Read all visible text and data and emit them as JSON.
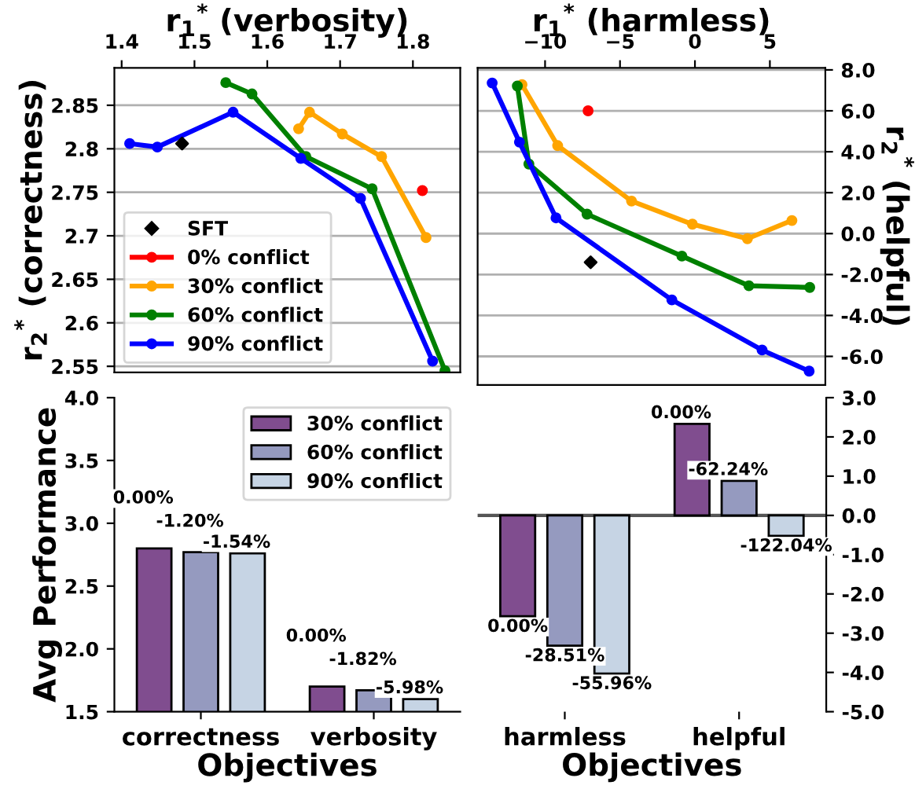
{
  "chart_data": [
    {
      "type": "line",
      "xlabel": "r$_{1}$$^{*}$ (verbosity)",
      "ylabel": "r$_{2}$$^{*}$ (correctness)",
      "xlim": [
        1.39,
        1.865
      ],
      "ylim": [
        2.543,
        2.893
      ],
      "xticks": [
        1.4,
        1.5,
        1.6,
        1.7,
        1.8
      ],
      "yticks": [
        2.55,
        2.6,
        2.65,
        2.7,
        2.75,
        2.8,
        2.85
      ],
      "grid": "y",
      "legend": "bottom left",
      "marker": "circle",
      "line_style": "solid",
      "series": [
        {
          "name": "SFT",
          "type": "scatter",
          "marker": "diamond",
          "color": "#000000",
          "x": [
            1.483
          ],
          "values": [
            2.806
          ]
        },
        {
          "name": "0% conflict",
          "color": "#ff0000",
          "x": [
            1.813
          ],
          "values": [
            2.752
          ]
        },
        {
          "name": "30% conflict",
          "color": "#ffa500",
          "x": [
            1.643,
            1.658,
            1.703,
            1.757,
            1.818
          ],
          "values": [
            2.823,
            2.842,
            2.817,
            2.791,
            2.698
          ]
        },
        {
          "name": "60% conflict",
          "color": "#008000",
          "x": [
            1.543,
            1.579,
            1.653,
            1.744,
            1.844
          ],
          "values": [
            2.876,
            2.863,
            2.791,
            2.754,
            2.545
          ]
        },
        {
          "name": "90% conflict",
          "color": "#0000ff",
          "x": [
            1.411,
            1.449,
            1.553,
            1.646,
            1.728,
            1.827
          ],
          "values": [
            2.806,
            2.802,
            2.842,
            2.789,
            2.743,
            2.556
          ]
        }
      ]
    },
    {
      "type": "line",
      "xlabel": "r$_{1}$$^{*}$ (harmless)",
      "ylabel": "r$_{2}$$^{*}$ (helpful)",
      "xlim": [
        -14.5,
        8.7
      ],
      "ylim": [
        -7.4,
        8.1
      ],
      "xticks": [
        {
          "value": -10,
          "label": "−10"
        },
        {
          "value": -5,
          "label": "−5"
        },
        0,
        5
      ],
      "yticks": [
        {
          "value": -6,
          "label": "-6.0"
        },
        {
          "value": -4,
          "label": "-4.0"
        },
        {
          "value": -2,
          "label": "-2.0"
        },
        {
          "value": 0,
          "label": "0.0"
        },
        {
          "value": 2,
          "label": "2.0"
        },
        {
          "value": 4,
          "label": "4.0"
        },
        {
          "value": 6,
          "label": "6.0"
        },
        {
          "value": 8,
          "label": "8.0"
        }
      ],
      "grid": "y",
      "marker": "circle",
      "line_style": "solid",
      "series": [
        {
          "type": "scatter",
          "marker": "diamond",
          "color": "#000000",
          "x": [
            -6.96
          ],
          "values": [
            -1.4
          ]
        },
        {
          "color": "#ff0000",
          "x": [
            -7.13
          ],
          "values": [
            6.0
          ]
        },
        {
          "color": "#ffa500",
          "x": [
            -11.54,
            -9.16,
            -4.23,
            -0.17,
            3.5,
            6.47
          ],
          "values": [
            7.28,
            4.3,
            1.59,
            0.46,
            -0.25,
            0.64
          ]
        },
        {
          "color": "#008000",
          "x": [
            -11.85,
            -11.08,
            -7.2,
            -0.87,
            3.6,
            7.66
          ],
          "values": [
            7.21,
            3.4,
            0.95,
            -1.1,
            -2.55,
            -2.63
          ]
        },
        {
          "color": "#0000ff",
          "x": [
            -13.53,
            -11.71,
            -9.27,
            -1.54,
            4.48,
            7.62
          ],
          "values": [
            7.36,
            4.47,
            0.77,
            -3.24,
            -5.69,
            -6.72
          ]
        }
      ]
    },
    {
      "type": "bar",
      "xlabel": "Objectives",
      "ylabel": "Avg Performance",
      "categories": [
        "correctness",
        "verbosity"
      ],
      "ylim": [
        1.5,
        4.0
      ],
      "yticks": [
        1.5,
        {
          "value": 2,
          "label": "2.0"
        },
        2.5,
        {
          "value": 3,
          "label": "3.0"
        },
        3.5,
        {
          "value": 4,
          "label": "4.0"
        }
      ],
      "grid": false,
      "legend": "top right",
      "series": [
        {
          "name": "30% conflict",
          "color": "#804d8f",
          "values": [
            2.8,
            1.7
          ]
        },
        {
          "name": "60% conflict",
          "color": "#959abf",
          "values": [
            2.77,
            1.67
          ]
        },
        {
          "name": "90% conflict",
          "color": "#c6d4e4",
          "values": [
            2.76,
            1.6
          ]
        }
      ],
      "annotations": [
        "0.00%",
        "-1.20%",
        "-1.54%",
        "0.00%",
        "-1.82%",
        "-5.98%"
      ]
    },
    {
      "type": "bar",
      "xlabel": "Objectives",
      "categories": [
        "harmless",
        "helpful"
      ],
      "ylim": [
        -5.0,
        3.0
      ],
      "yticks": [
        {
          "value": -5,
          "label": "-5.0"
        },
        {
          "value": -4,
          "label": "-4.0"
        },
        {
          "value": -3,
          "label": "-3.0"
        },
        {
          "value": -2,
          "label": "-2.0"
        },
        {
          "value": -1,
          "label": "-1.0"
        },
        {
          "value": 0,
          "label": "0.0"
        },
        {
          "value": 1,
          "label": "1.0"
        },
        {
          "value": 2,
          "label": "2.0"
        },
        {
          "value": 3,
          "label": "3.0"
        }
      ],
      "grid": false,
      "ref_lines": [
        {
          "axis": "y",
          "value": 0,
          "color": "#555555"
        }
      ],
      "series": [
        {
          "color": "#804d8f",
          "values": [
            -2.57,
            2.33
          ]
        },
        {
          "color": "#959abf",
          "values": [
            -3.32,
            0.88
          ]
        },
        {
          "color": "#c6d4e4",
          "values": [
            -4.03,
            -0.52
          ]
        }
      ],
      "annotations": [
        "0.00%",
        "-28.51%",
        "-55.96%",
        "0.00%",
        "-62.24%",
        "-122.04%"
      ]
    }
  ]
}
